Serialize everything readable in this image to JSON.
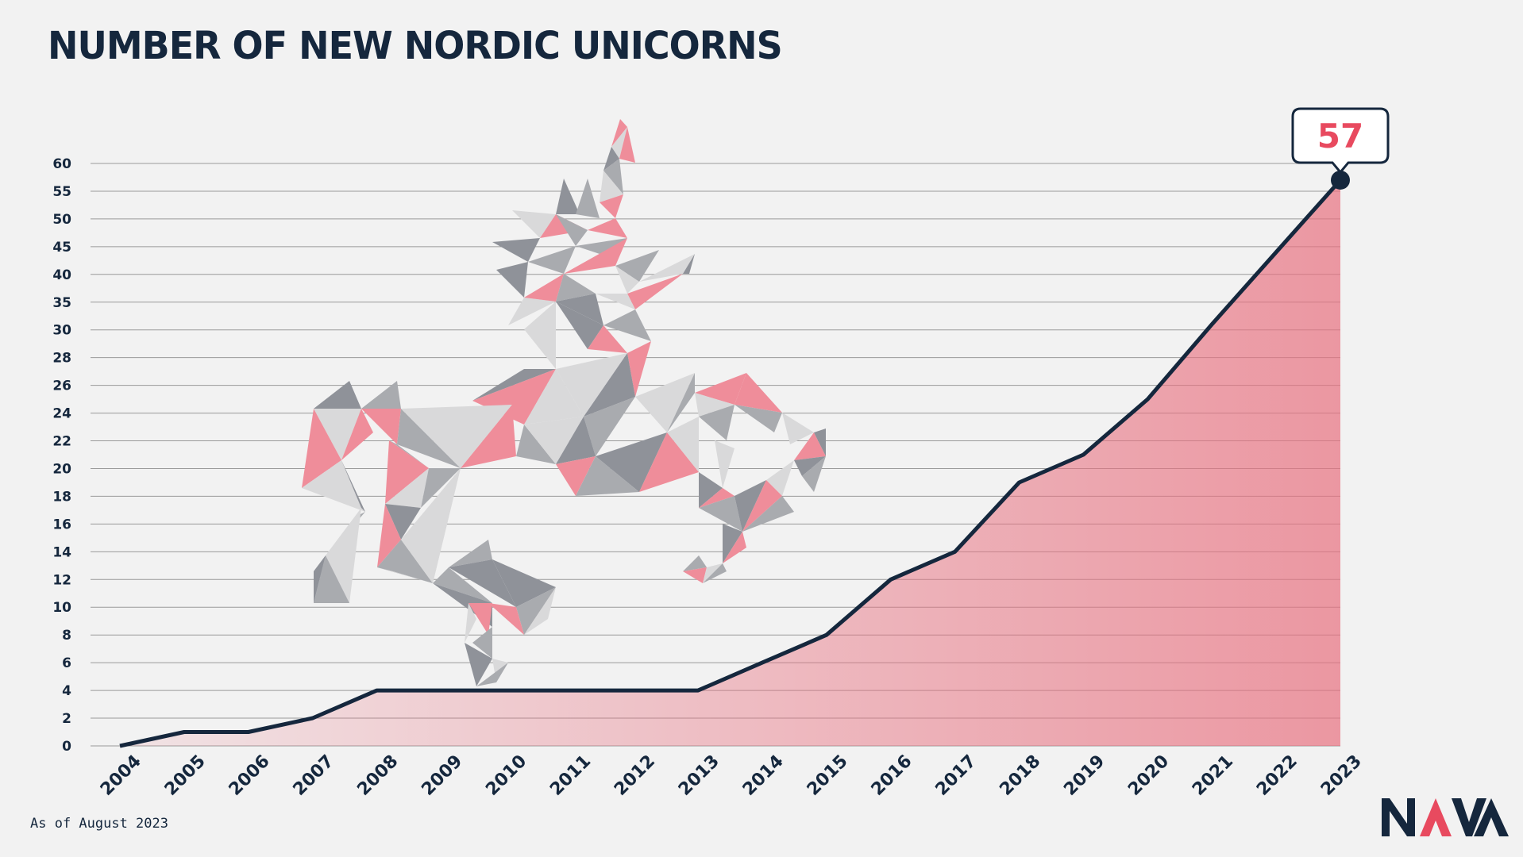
{
  "title": "NUMBER OF NEW NORDIC UNICORNS",
  "footnote": "As of August 2023",
  "logo": {
    "text": "NAVA",
    "icon": "nava-logo-icon"
  },
  "colors": {
    "line": "#15273d",
    "area": "#e8707f",
    "text": "#15273d",
    "accent": "#e84a5f",
    "grid": "#9a9a9a"
  },
  "decoration": {
    "icon": "polygonal-unicorn-illustration"
  },
  "chart_data": {
    "type": "area",
    "title": "NUMBER OF NEW NORDIC UNICORNS",
    "xlabel": "",
    "ylabel": "",
    "grid": true,
    "y_ticks": [
      0,
      2,
      4,
      6,
      8,
      10,
      12,
      14,
      16,
      18,
      20,
      22,
      24,
      26,
      28,
      30,
      35,
      40,
      45,
      50,
      55,
      60
    ],
    "ylim": [
      0,
      60
    ],
    "x": [
      "2004",
      "2005",
      "2006",
      "2007",
      "2008",
      "2009",
      "2010",
      "2011",
      "2012",
      "2013",
      "2014",
      "2015",
      "2016",
      "2017",
      "2018",
      "2019",
      "2020",
      "2021",
      "2022",
      "2023"
    ],
    "series": [
      {
        "values": [
          0,
          1,
          1,
          2,
          4,
          4,
          4,
          4,
          4,
          4,
          6,
          8,
          12,
          14,
          19,
          21,
          25,
          31,
          44,
          57
        ]
      }
    ],
    "annotation": {
      "label": "57",
      "x": "2023",
      "value": 57
    }
  }
}
